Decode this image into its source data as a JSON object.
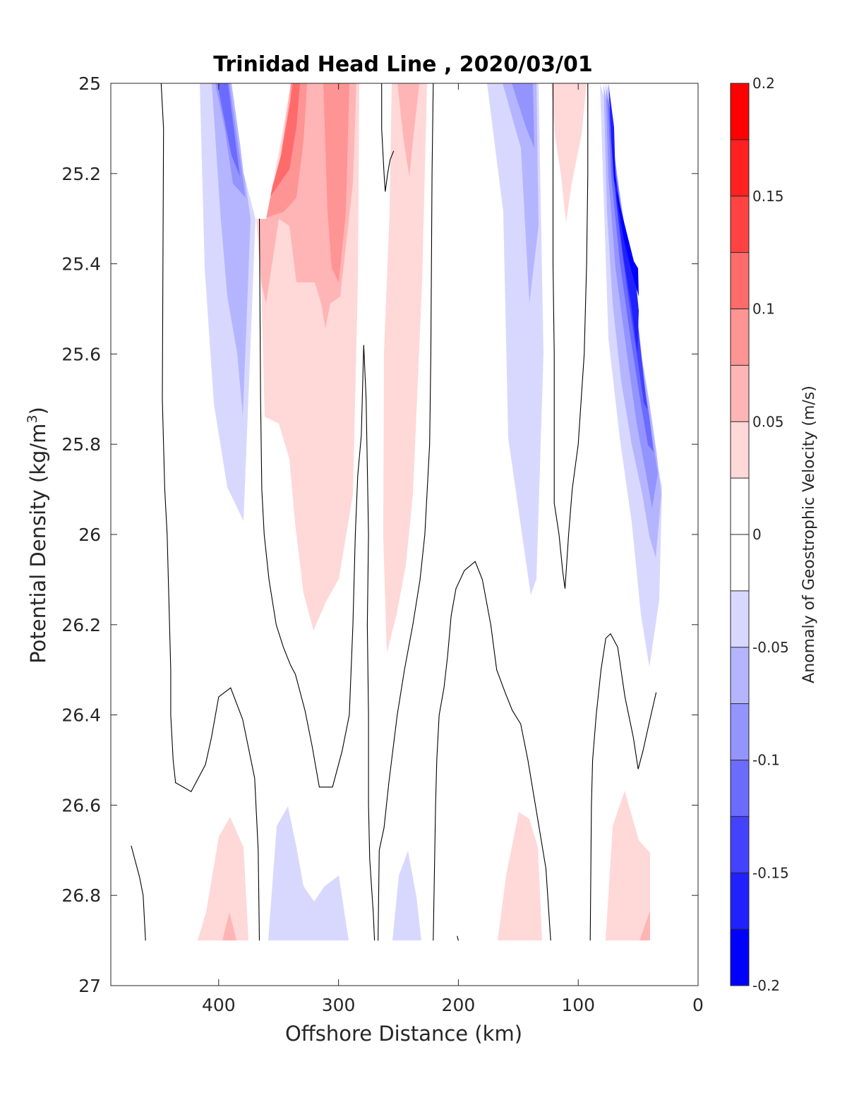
{
  "chart_data": {
    "type": "contour",
    "title": "Trinidad Head Line , 2020/03/01",
    "xlabel": "Offshore Distance (km)",
    "ylabel": "Potential Density (kg/m",
    "ylabel_sup": "3",
    "ylabel_close": ")",
    "xlim": [
      490,
      0
    ],
    "ylim": [
      25,
      27
    ],
    "y_reversed": true,
    "x_ticks": [
      {
        "value": 400,
        "label": "400"
      },
      {
        "value": 300,
        "label": "300"
      },
      {
        "value": 200,
        "label": "200"
      },
      {
        "value": 100,
        "label": "100"
      },
      {
        "value": 0,
        "label": "0"
      }
    ],
    "y_ticks": [
      {
        "value": 25,
        "label": "25"
      },
      {
        "value": 25.2,
        "label": "25.2"
      },
      {
        "value": 25.4,
        "label": "25.4"
      },
      {
        "value": 25.6,
        "label": "25.6"
      },
      {
        "value": 25.8,
        "label": "25.8"
      },
      {
        "value": 26,
        "label": "26"
      },
      {
        "value": 26.2,
        "label": "26.2"
      },
      {
        "value": 26.4,
        "label": "26.4"
      },
      {
        "value": 26.6,
        "label": "26.6"
      },
      {
        "value": 26.8,
        "label": "26.8"
      },
      {
        "value": 27,
        "label": "27"
      }
    ],
    "colorbar": {
      "label": "Anomaly of Geostrophic Velocity (m/s)",
      "range": [
        -0.2,
        0.2
      ],
      "step": 0.025,
      "ticks": [
        {
          "value": 0.2,
          "label": "0.2"
        },
        {
          "value": 0.15,
          "label": "0.15"
        },
        {
          "value": 0.1,
          "label": "0.1"
        },
        {
          "value": 0.05,
          "label": "0.05"
        },
        {
          "value": 0,
          "label": "0"
        },
        {
          "value": -0.05,
          "label": "-0.05"
        },
        {
          "value": -0.1,
          "label": "-0.1"
        },
        {
          "value": -0.15,
          "label": "-0.15"
        },
        {
          "value": -0.2,
          "label": "-0.2"
        }
      ],
      "bands": [
        {
          "lo": 0.175,
          "hi": 0.2,
          "color": "#ff0000"
        },
        {
          "lo": 0.15,
          "hi": 0.175,
          "color": "#ff2121"
        },
        {
          "lo": 0.125,
          "hi": 0.15,
          "color": "#ff4343"
        },
        {
          "lo": 0.1,
          "hi": 0.125,
          "color": "#ff6b6b"
        },
        {
          "lo": 0.075,
          "hi": 0.1,
          "color": "#ff9494"
        },
        {
          "lo": 0.05,
          "hi": 0.075,
          "color": "#ffb5b5"
        },
        {
          "lo": 0.025,
          "hi": 0.05,
          "color": "#ffd8d8"
        },
        {
          "lo": 0,
          "hi": 0.025,
          "color": "#ffffff"
        },
        {
          "lo": -0.025,
          "hi": 0,
          "color": "#ffffff"
        },
        {
          "lo": -0.05,
          "hi": -0.025,
          "color": "#d8d8ff"
        },
        {
          "lo": -0.075,
          "hi": -0.05,
          "color": "#b5b5ff"
        },
        {
          "lo": -0.1,
          "hi": -0.075,
          "color": "#9494ff"
        },
        {
          "lo": -0.125,
          "hi": -0.1,
          "color": "#6b6bff"
        },
        {
          "lo": -0.15,
          "hi": -0.125,
          "color": "#4343ff"
        },
        {
          "lo": -0.175,
          "hi": -0.15,
          "color": "#2121ff"
        },
        {
          "lo": -0.2,
          "hi": -0.175,
          "color": "#0000ff"
        }
      ]
    },
    "zero_contours": [
      {
        "name": "zero-contour-1",
        "points": [
          [
            448,
            25.0
          ],
          [
            446,
            25.1
          ],
          [
            447,
            25.7
          ],
          [
            445,
            25.9
          ],
          [
            443,
            26.0
          ],
          [
            441,
            26.2
          ],
          [
            440,
            26.3
          ],
          [
            440,
            26.4
          ],
          [
            438,
            26.5
          ],
          [
            436,
            26.55
          ],
          [
            423,
            26.57
          ],
          [
            411,
            26.51
          ],
          [
            406,
            26.45
          ],
          [
            400,
            26.36
          ],
          [
            390,
            26.34
          ],
          [
            380,
            26.41
          ],
          [
            370,
            26.54
          ],
          [
            367,
            26.7
          ],
          [
            366,
            26.9
          ]
        ]
      },
      {
        "name": "zero-contour-2",
        "points": [
          [
            366,
            25.3
          ],
          [
            365,
            25.7
          ],
          [
            364,
            25.9
          ],
          [
            362,
            26.0
          ],
          [
            358,
            26.1
          ],
          [
            352,
            26.2
          ],
          [
            346,
            26.25
          ],
          [
            340,
            26.29
          ],
          [
            336,
            26.31
          ],
          [
            328,
            26.39
          ],
          [
            322,
            26.47
          ],
          [
            316,
            26.56
          ],
          [
            305,
            26.56
          ],
          [
            297,
            26.48
          ],
          [
            291,
            26.4
          ],
          [
            288,
            26.2
          ],
          [
            286,
            26.0
          ],
          [
            284,
            25.87
          ],
          [
            281,
            25.78
          ],
          [
            279,
            25.58
          ],
          [
            277,
            25.7
          ],
          [
            276,
            25.85
          ],
          [
            275,
            26.0
          ],
          [
            276,
            26.2
          ],
          [
            275,
            26.4
          ],
          [
            275,
            26.6
          ],
          [
            274,
            26.72
          ],
          [
            271,
            26.84
          ],
          [
            270,
            26.9
          ]
        ]
      },
      {
        "name": "zero-contour-3",
        "points": [
          [
            264,
            25.0
          ],
          [
            264,
            25.1
          ],
          [
            262,
            25.2
          ],
          [
            261,
            25.24
          ],
          [
            259,
            25.2
          ],
          [
            257,
            25.17
          ],
          [
            254,
            25.15
          ]
        ]
      },
      {
        "name": "zero-contour-4",
        "points": [
          [
            267,
            26.9
          ],
          [
            266,
            26.7
          ],
          [
            262,
            26.65
          ],
          [
            258,
            26.55
          ],
          [
            251,
            26.4
          ],
          [
            245,
            26.3
          ],
          [
            238,
            26.2
          ],
          [
            232,
            26.1
          ],
          [
            228,
            26.0
          ],
          [
            224,
            25.8
          ],
          [
            223,
            25.6
          ],
          [
            222,
            25.2
          ],
          [
            221,
            25.0
          ]
        ]
      },
      {
        "name": "zero-contour-5",
        "points": [
          [
            221,
            26.9
          ],
          [
            219,
            26.6
          ],
          [
            218,
            26.5
          ],
          [
            216,
            26.4
          ],
          [
            212,
            26.34
          ],
          [
            209,
            26.27
          ],
          [
            206,
            26.18
          ],
          [
            202,
            26.12
          ],
          [
            195,
            26.08
          ],
          [
            186,
            26.06
          ],
          [
            180,
            26.1
          ],
          [
            173,
            26.2
          ],
          [
            168,
            26.3
          ],
          [
            161,
            26.35
          ],
          [
            155,
            26.39
          ],
          [
            148,
            26.42
          ],
          [
            142,
            26.5
          ],
          [
            137,
            26.58
          ],
          [
            132,
            26.66
          ],
          [
            127,
            26.74
          ],
          [
            123,
            26.9
          ]
        ]
      },
      {
        "name": "zero-contour-6",
        "points": [
          [
            201,
            26.89
          ],
          [
            200,
            26.9
          ]
        ]
      },
      {
        "name": "zero-contour-7",
        "points": [
          [
            121,
            25.0
          ],
          [
            121,
            25.2
          ],
          [
            121,
            25.4
          ],
          [
            120,
            25.6
          ],
          [
            120,
            25.93
          ],
          [
            116,
            26.0
          ],
          [
            113,
            26.08
          ],
          [
            111,
            26.12
          ],
          [
            108,
            26.0
          ],
          [
            105,
            25.9
          ],
          [
            100,
            25.8
          ],
          [
            95,
            25.6
          ],
          [
            93,
            25.4
          ],
          [
            92,
            25.2
          ],
          [
            92,
            25.0
          ]
        ]
      },
      {
        "name": "zero-contour-8",
        "points": [
          [
            90,
            26.9
          ],
          [
            89,
            26.6
          ],
          [
            88,
            26.5
          ],
          [
            85,
            26.4
          ],
          [
            81,
            26.3
          ],
          [
            77,
            26.23
          ],
          [
            73,
            26.22
          ],
          [
            67,
            26.25
          ],
          [
            61,
            26.36
          ],
          [
            54,
            26.45
          ],
          [
            50,
            26.52
          ],
          [
            46,
            26.48
          ],
          [
            41,
            26.42
          ],
          [
            35,
            26.35
          ]
        ]
      },
      {
        "name": "zero-contour-9",
        "points": [
          [
            473,
            26.69
          ],
          [
            470,
            26.72
          ],
          [
            466,
            26.76
          ],
          [
            463,
            26.8
          ],
          [
            461,
            26.9
          ]
        ]
      }
    ]
  }
}
